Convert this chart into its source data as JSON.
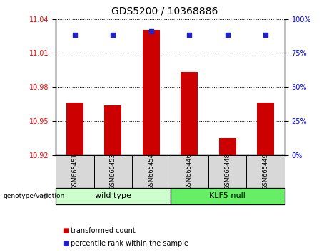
{
  "title": "GDS5200 / 10368886",
  "samples": [
    "GSM665451",
    "GSM665453",
    "GSM665454",
    "GSM665446",
    "GSM665448",
    "GSM665449"
  ],
  "bar_values": [
    10.966,
    10.964,
    11.03,
    10.993,
    10.935,
    10.966
  ],
  "bar_base": 10.92,
  "percentile_values": [
    88,
    88,
    91,
    88,
    88,
    88
  ],
  "left_ylim": [
    10.92,
    11.04
  ],
  "left_yticks": [
    10.92,
    10.95,
    10.98,
    11.01,
    11.04
  ],
  "right_ylim": [
    0,
    100
  ],
  "right_yticks": [
    0,
    25,
    50,
    75,
    100
  ],
  "bar_color": "#cc0000",
  "marker_color": "#2222cc",
  "wild_type_color": "#ccffcc",
  "klf5_null_color": "#66ee66",
  "sample_box_color": "#d8d8d8",
  "legend_red_label": "transformed count",
  "legend_blue_label": "percentile rank within the sample",
  "group_label": "genotype/variation",
  "group1_label": "wild type",
  "group2_label": "KLF5 null",
  "title_fontsize": 10,
  "tick_fontsize": 7,
  "sample_fontsize": 6,
  "group_fontsize": 8,
  "legend_fontsize": 7
}
